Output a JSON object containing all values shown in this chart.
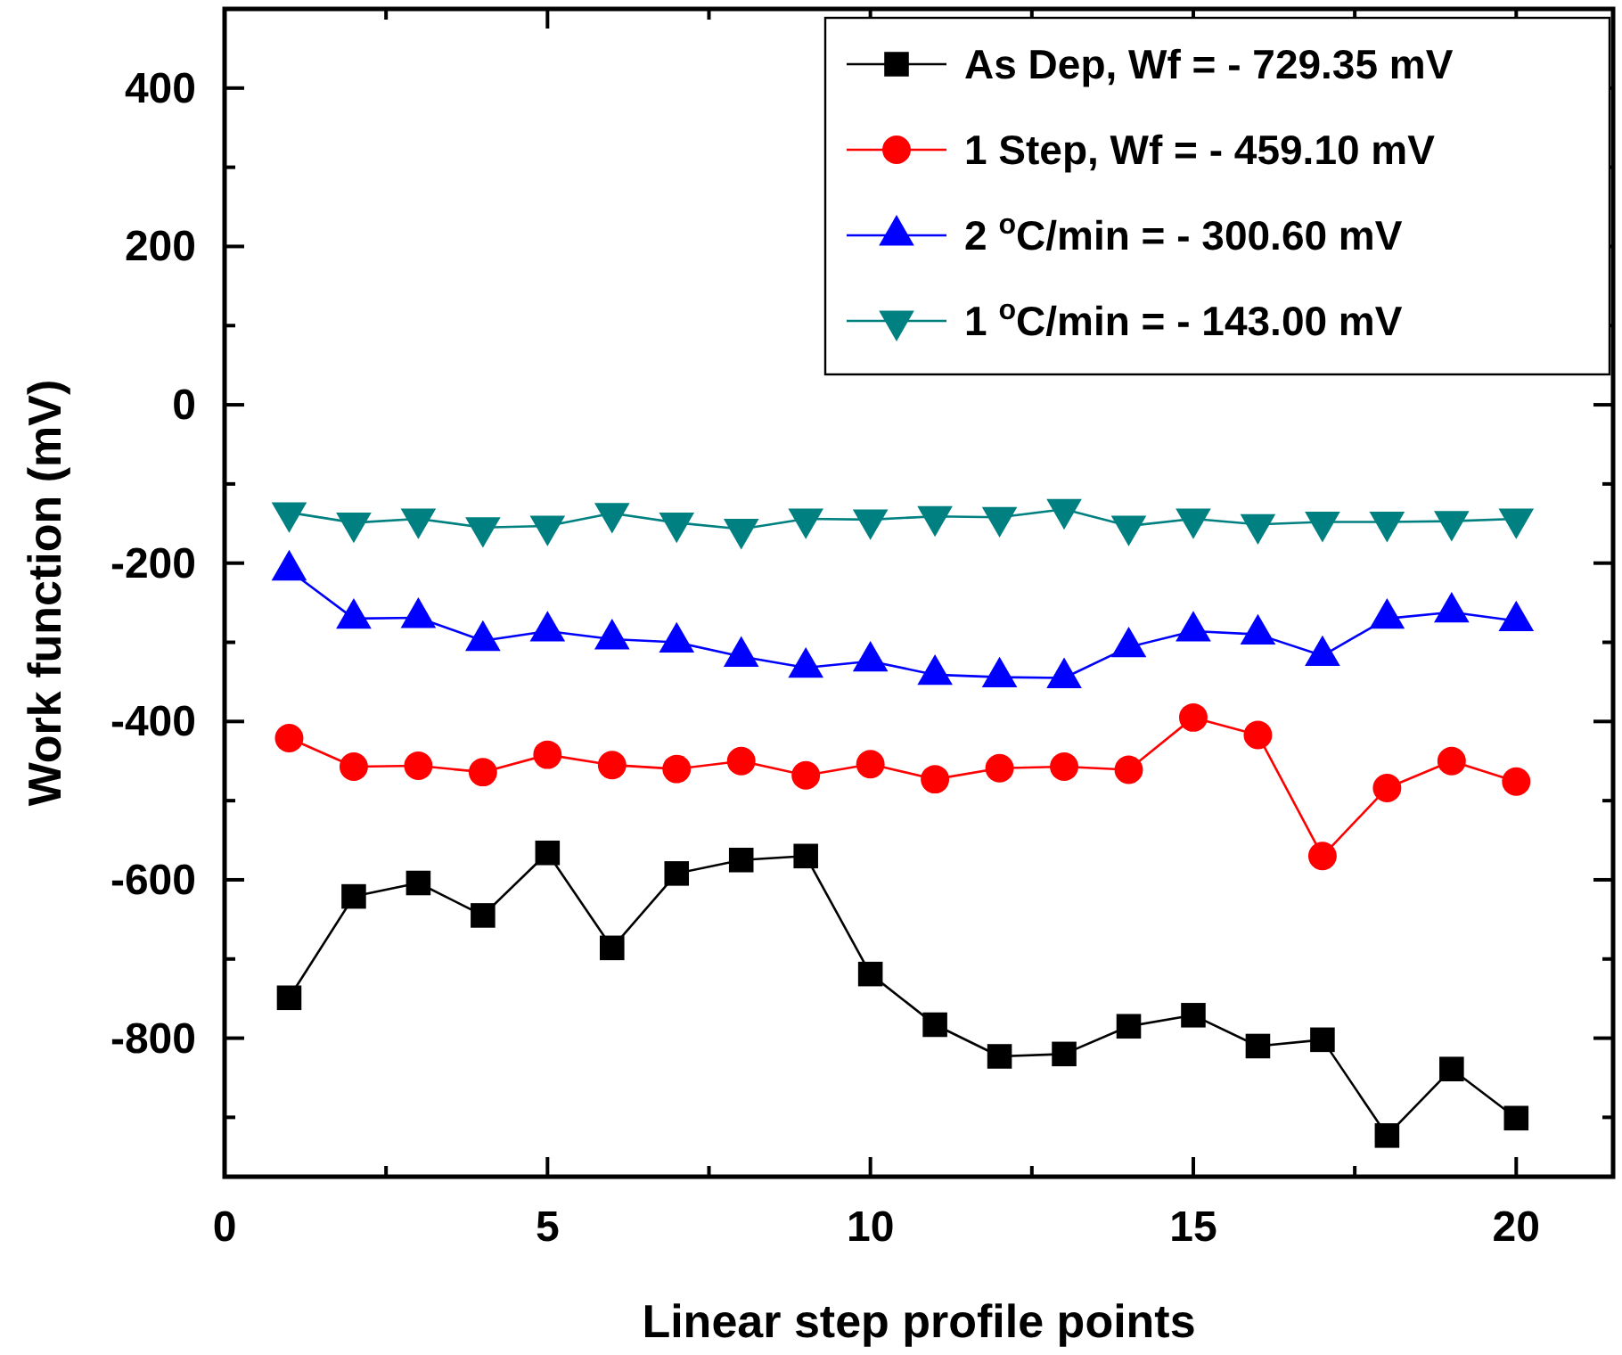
{
  "chart_data": {
    "type": "line",
    "xlabel": "Linear step profile points",
    "ylabel": "Work function (mV)",
    "x": [
      1,
      2,
      3,
      4,
      5,
      6,
      7,
      8,
      9,
      10,
      11,
      12,
      13,
      14,
      15,
      16,
      17,
      18,
      19,
      20
    ],
    "xlim": [
      0,
      21.5
    ],
    "xticks": [
      0,
      {
        "value": 2.5,
        "label": null
      },
      5,
      {
        "value": 7.5,
        "label": null
      },
      10,
      {
        "value": 12.5,
        "label": null
      },
      15,
      {
        "value": 17.5,
        "label": null
      },
      20
    ],
    "ylim": [
      -975,
      500
    ],
    "yticks": [
      {
        "value": -900,
        "label": null
      },
      -800,
      {
        "value": -700,
        "label": null
      },
      -600,
      {
        "value": -500,
        "label": null
      },
      -400,
      {
        "value": -300,
        "label": null
      },
      -200,
      {
        "value": -100,
        "label": null
      },
      0,
      {
        "value": 100,
        "label": null
      },
      200,
      {
        "value": 300,
        "label": null
      },
      400
    ],
    "grid": false,
    "legend": "top right",
    "line_style": "solid",
    "series": [
      {
        "name": "As Dep, Wf = - 729.35 mV",
        "color": "#000000",
        "marker": "square",
        "values": [
          -749,
          -621,
          -604,
          -645,
          -566,
          -686,
          -592,
          -575,
          -570,
          -719,
          -783,
          -823,
          -820,
          -785,
          -771,
          -810,
          -802,
          -923,
          -839,
          -901
        ]
      },
      {
        "name": "1 Step, Wf = - 459.10 mV",
        "color": "#ff0000",
        "marker": "circle",
        "values": [
          -421,
          -457,
          -456,
          -464,
          -442,
          -455,
          -460,
          -450,
          -468,
          -454,
          -473,
          -459,
          -457,
          -461,
          -395,
          -417,
          -570,
          -484,
          -450,
          -476
        ]
      },
      {
        "name": "2 $^{o}$C/min = - 300.60 mV",
        "color": "#0000ff",
        "marker": "triangle",
        "values": [
          -209,
          -270,
          -269,
          -298,
          -286,
          -296,
          -300,
          -318,
          -332,
          -324,
          -341,
          -344,
          -345,
          -306,
          -286,
          -290,
          -317,
          -270,
          -262,
          -273
        ]
      },
      {
        "name": "1 $^{o}$C/min = - 143.00 mV",
        "color": "#008080",
        "marker": "triangle-down",
        "values": [
          -136,
          -149,
          -144,
          -155,
          -153,
          -137,
          -149,
          -157,
          -144,
          -145,
          -141,
          -142,
          -132,
          -153,
          -144,
          -151,
          -148,
          -148,
          -147,
          -144
        ]
      }
    ]
  }
}
